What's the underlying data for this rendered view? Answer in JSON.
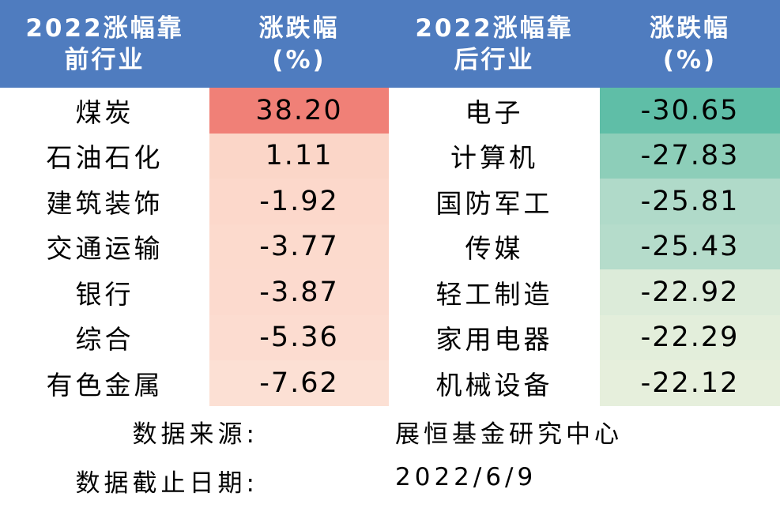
{
  "header": {
    "col1_line1": "2022涨幅靠",
    "col1_line2": "前行业",
    "col2_line1": "涨跌幅",
    "col2_line2": "(%)",
    "col3_line1": "2022涨幅靠",
    "col3_line2": "后行业",
    "col4_line1": "涨跌幅",
    "col4_line2": "(%)"
  },
  "rows": [
    {
      "top_industry": "煤炭",
      "top_change": "38.20",
      "top_color": "#f08077",
      "bottom_industry": "电子",
      "bottom_change": "-30.65",
      "bottom_color": "#5fbea7"
    },
    {
      "top_industry": "石油石化",
      "top_change": "1.11",
      "top_color": "#fbd6c8",
      "bottom_industry": "计算机",
      "bottom_change": "-27.83",
      "bottom_color": "#8dceb9"
    },
    {
      "top_industry": "建筑装饰",
      "top_change": "-1.92",
      "top_color": "#fcd8cb",
      "bottom_industry": "国防军工",
      "bottom_change": "-25.81",
      "bottom_color": "#b0dac9"
    },
    {
      "top_industry": "交通运输",
      "top_change": "-3.77",
      "top_color": "#fcdacd",
      "bottom_industry": "传媒",
      "bottom_change": "-25.43",
      "bottom_color": "#b5dccb"
    },
    {
      "top_industry": "银行",
      "top_change": "-3.87",
      "top_color": "#fcdace",
      "bottom_industry": "轻工制造",
      "bottom_change": "-22.92",
      "bottom_color": "#dcebd9"
    },
    {
      "top_industry": "综合",
      "top_change": "-5.36",
      "top_color": "#fcdcd0",
      "bottom_industry": "家用电器",
      "bottom_change": "-22.29",
      "bottom_color": "#e3eedb"
    },
    {
      "top_industry": "有色金属",
      "top_change": "-7.62",
      "top_color": "#fce0d4",
      "bottom_industry": "机械设备",
      "bottom_change": "-22.12",
      "bottom_color": "#e6efdc"
    }
  ],
  "footer": {
    "source_label": "数据来源:",
    "source_value": "展恒基金研究中心",
    "date_label": "数据截止日期:",
    "date_value": "2022/6/9"
  },
  "colors": {
    "header_bg": "#4f7cbf",
    "header_text": "#ffffff"
  }
}
